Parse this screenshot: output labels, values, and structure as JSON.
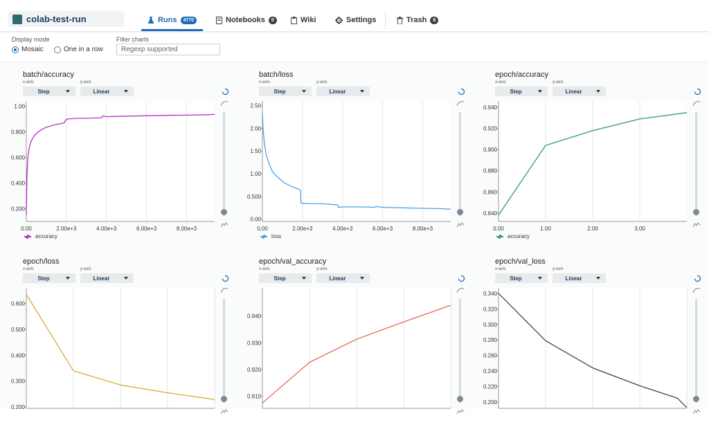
{
  "project": {
    "name": "colab-test-run"
  },
  "nav": {
    "tabs": [
      {
        "label": "Runs",
        "badge": "4770",
        "icon": "flask-icon",
        "active": true
      },
      {
        "label": "Notebooks",
        "badge": "0",
        "icon": "notebook-icon"
      },
      {
        "label": "Wiki",
        "icon": "clipboard-icon"
      },
      {
        "label": "Settings",
        "icon": "gear-icon"
      },
      {
        "label": "Trash",
        "badge": "6",
        "icon": "trash-icon"
      }
    ]
  },
  "controls": {
    "display_mode_label": "Display mode",
    "mosaic_label": "Mosaic",
    "one_in_row_label": "One in a row",
    "selected_mode": "Mosaic",
    "filter_label": "Filter charts",
    "filter_placeholder": "Regexp supported"
  },
  "colors": {
    "accent": "#1e6bb8",
    "accuracy": "#b72fc9",
    "loss": "#4aa3e8",
    "epoch_accuracy": "#2e9d6b",
    "epoch_loss": "#d4ad3b",
    "val_accuracy": "#e06a50",
    "val_loss": "#3b4555"
  },
  "chart_data": [
    {
      "type": "line",
      "title": "batch/accuracy",
      "x_axis": "Step",
      "y_axis": "Linear",
      "xaxis_label": "x-axis",
      "yaxis_label": "y-axis",
      "legend": "accuracy",
      "color": "#b72fc9",
      "xlim": [
        0,
        9400
      ],
      "ylim": [
        0.1,
        1.04
      ],
      "xticks": [
        "0.00",
        "2.00e+3",
        "4.00e+3",
        "6.00e+3",
        "8.00e+3"
      ],
      "xtick_values": [
        0,
        2000,
        4000,
        6000,
        8000
      ],
      "yticks": [
        "0.200",
        "0.400",
        "0.600",
        "0.800",
        "1.00"
      ],
      "ytick_values": [
        0.2,
        0.4,
        0.6,
        0.8,
        1.0
      ],
      "x": [
        0,
        30,
        80,
        150,
        250,
        400,
        600,
        800,
        1000,
        1300,
        1600,
        1900,
        1950,
        2050,
        2500,
        3000,
        3500,
        3780,
        3820,
        4000,
        4500,
        5000,
        6000,
        7000,
        8000,
        9000,
        9400
      ],
      "y": [
        0.15,
        0.45,
        0.6,
        0.68,
        0.73,
        0.77,
        0.8,
        0.82,
        0.835,
        0.85,
        0.86,
        0.87,
        0.89,
        0.9,
        0.905,
        0.905,
        0.908,
        0.91,
        0.925,
        0.918,
        0.92,
        0.922,
        0.925,
        0.928,
        0.93,
        0.933,
        0.935
      ]
    },
    {
      "type": "line",
      "title": "batch/loss",
      "x_axis": "Step",
      "y_axis": "Linear",
      "xaxis_label": "x-axis",
      "yaxis_label": "y-axis",
      "legend": "loss",
      "color": "#4aa3e8",
      "xlim": [
        0,
        9400
      ],
      "ylim": [
        -0.05,
        2.6
      ],
      "xticks": [
        "0.00",
        "2.00e+3",
        "4.00e+3",
        "6.00e+3",
        "8.00e+3"
      ],
      "xtick_values": [
        0,
        2000,
        4000,
        6000,
        8000
      ],
      "yticks": [
        "0.00",
        "0.500",
        "1.00",
        "1.50",
        "2.00",
        "2.50"
      ],
      "ytick_values": [
        0,
        0.5,
        1.0,
        1.5,
        2.0,
        2.5
      ],
      "x": [
        0,
        30,
        100,
        200,
        350,
        500,
        700,
        900,
        1100,
        1400,
        1700,
        1900,
        1920,
        2000,
        2500,
        3000,
        3600,
        3780,
        3800,
        4000,
        5000,
        5600,
        5650,
        6000,
        7000,
        8000,
        9000,
        9400
      ],
      "y": [
        2.35,
        2.0,
        1.65,
        1.4,
        1.2,
        1.05,
        0.95,
        0.87,
        0.8,
        0.73,
        0.68,
        0.64,
        0.36,
        0.35,
        0.34,
        0.34,
        0.32,
        0.31,
        0.26,
        0.27,
        0.27,
        0.26,
        0.28,
        0.26,
        0.25,
        0.24,
        0.23,
        0.22
      ]
    },
    {
      "type": "line",
      "title": "epoch/accuracy",
      "x_axis": "Step",
      "y_axis": "Linear",
      "xaxis_label": "x-axis",
      "yaxis_label": "y-axis",
      "legend": "accuracy",
      "color": "#2e9d6b",
      "xlim": [
        0,
        4.0
      ],
      "ylim": [
        0.832,
        0.946
      ],
      "xticks": [
        "0.00",
        "1.00",
        "2.00",
        "3.00"
      ],
      "xtick_values": [
        0,
        1,
        2,
        3
      ],
      "yticks": [
        "0.840",
        "0.860",
        "0.880",
        "0.900",
        "0.920",
        "0.940"
      ],
      "ytick_values": [
        0.84,
        0.86,
        0.88,
        0.9,
        0.92,
        0.94
      ],
      "x": [
        0,
        1,
        2,
        3,
        4
      ],
      "y": [
        0.838,
        0.904,
        0.918,
        0.929,
        0.935
      ]
    },
    {
      "type": "line",
      "title": "epoch/loss",
      "x_axis": "Step",
      "y_axis": "Linear",
      "xaxis_label": "x-axis",
      "yaxis_label": "y-axis",
      "legend": "",
      "color": "#d4ad3b",
      "xlim": [
        0,
        4.0
      ],
      "ylim": [
        0.195,
        0.66
      ],
      "xticks": [],
      "xtick_values": [],
      "yticks": [
        "0.200",
        "0.300",
        "0.400",
        "0.500",
        "0.600"
      ],
      "ytick_values": [
        0.2,
        0.3,
        0.4,
        0.5,
        0.6
      ],
      "x": [
        0,
        1,
        2,
        3,
        4
      ],
      "y": [
        0.635,
        0.34,
        0.285,
        0.255,
        0.229
      ]
    },
    {
      "type": "line",
      "title": "epoch/val_accuracy",
      "x_axis": "Step",
      "y_axis": "Linear",
      "xaxis_label": "x-axis",
      "yaxis_label": "y-axis",
      "legend": "",
      "color": "#e06a50",
      "xlim": [
        0,
        4.0
      ],
      "ylim": [
        0.9055,
        0.9505
      ],
      "xticks": [],
      "xtick_values": [],
      "yticks": [
        "0.910",
        "0.920",
        "0.930",
        "0.940"
      ],
      "ytick_values": [
        0.91,
        0.92,
        0.93,
        0.94
      ],
      "x": [
        0,
        1,
        2,
        3,
        4
      ],
      "y": [
        0.9075,
        0.9227,
        0.9313,
        0.9378,
        0.944
      ]
    },
    {
      "type": "line",
      "title": "epoch/val_loss",
      "x_axis": "Step",
      "y_axis": "Linear",
      "xaxis_label": "x-axis",
      "yaxis_label": "y-axis",
      "legend": "",
      "color": "#3b4555",
      "xlim": [
        0,
        4.0
      ],
      "ylim": [
        0.192,
        0.347
      ],
      "xticks": [],
      "xtick_values": [],
      "yticks": [
        "0.200",
        "0.220",
        "0.240",
        "0.260",
        "0.280",
        "0.300",
        "0.320",
        "0.340"
      ],
      "ytick_values": [
        0.2,
        0.22,
        0.24,
        0.26,
        0.28,
        0.3,
        0.32,
        0.34
      ],
      "x": [
        0,
        1,
        2,
        3,
        3.8,
        4
      ],
      "y": [
        0.34,
        0.279,
        0.244,
        0.221,
        0.205,
        0.193
      ]
    }
  ]
}
